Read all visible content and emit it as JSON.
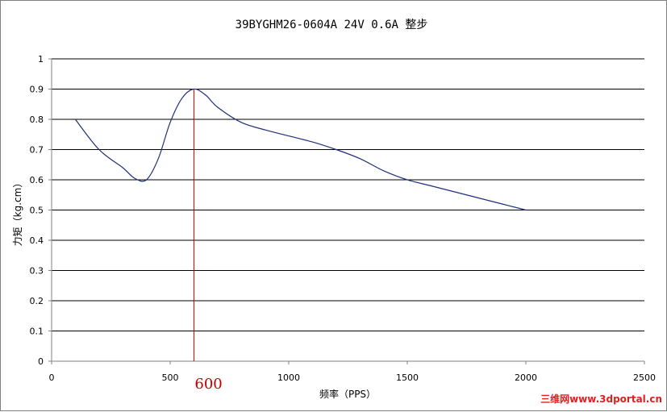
{
  "colors": {
    "series": "#1f2f7a",
    "marker": "#c00000",
    "grid": "#000000",
    "axis": "#808080",
    "watermark": "#e02020"
  },
  "chart_data": {
    "type": "line",
    "title": "39BYGHM26-0604A 24V 0.6A 整步",
    "xlabel": "频率（PPS）",
    "ylabel": "力矩（kg.cm）",
    "xlim": [
      0,
      2500
    ],
    "ylim": [
      0,
      1
    ],
    "x_ticks": [
      0,
      500,
      1000,
      1500,
      2000,
      2500
    ],
    "y_ticks": [
      0,
      0.1,
      0.2,
      0.3,
      0.4,
      0.5,
      0.6,
      0.7,
      0.8,
      0.9,
      1
    ],
    "grid": "horizontal",
    "series": [
      {
        "x": [
          100,
          200,
          300,
          350,
          400,
          450,
          500,
          550,
          600,
          650,
          700,
          800,
          900,
          1000,
          1100,
          1200,
          1300,
          1400,
          1500,
          1600,
          1700,
          1800,
          1900,
          2000
        ],
        "y": [
          0.8,
          0.7,
          0.64,
          0.605,
          0.6,
          0.67,
          0.79,
          0.87,
          0.9,
          0.88,
          0.84,
          0.79,
          0.765,
          0.745,
          0.725,
          0.7,
          0.67,
          0.63,
          0.6,
          0.58,
          0.56,
          0.54,
          0.52,
          0.5
        ]
      }
    ],
    "marker": {
      "x": 600,
      "label": "600"
    }
  },
  "watermark": "三维网www.3dportal.cn"
}
